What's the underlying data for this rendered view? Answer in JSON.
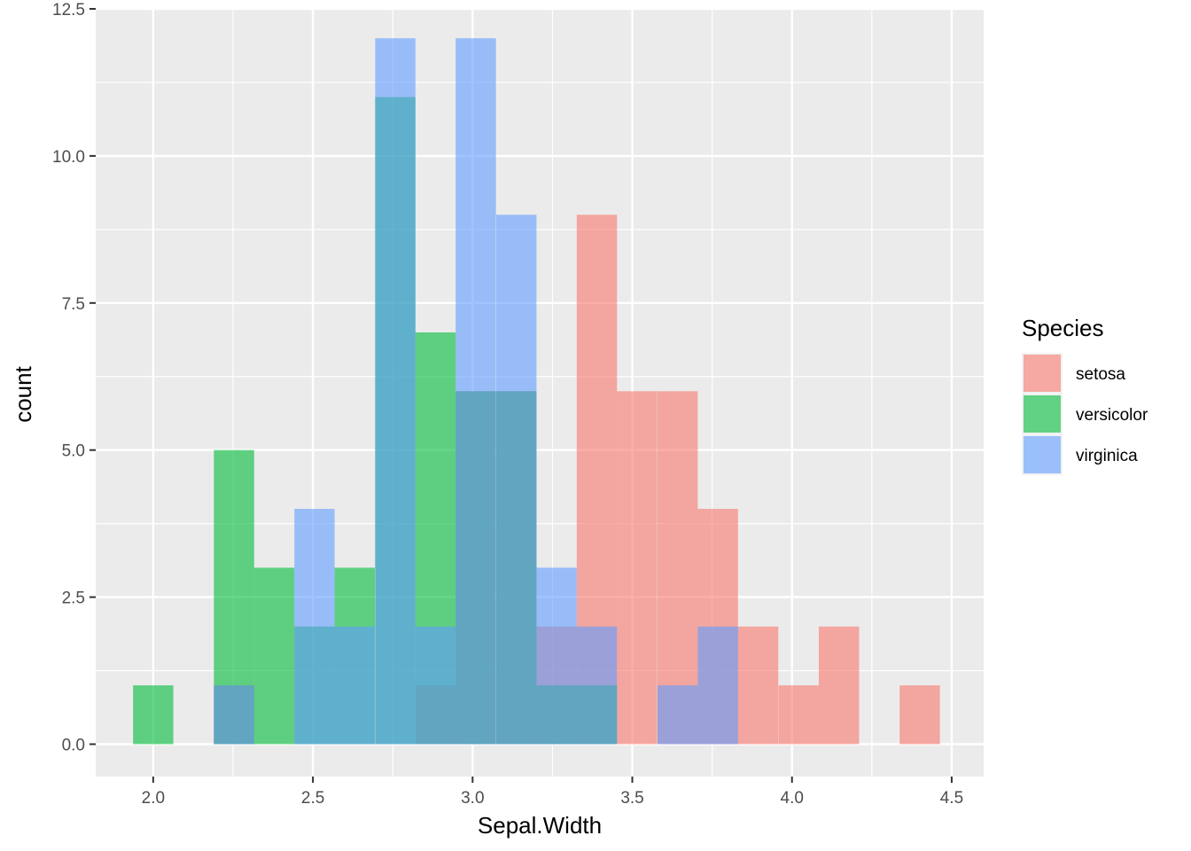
{
  "chart_data": {
    "type": "bar",
    "subtype": "overlapping histogram",
    "xlabel": "Sepal.Width",
    "ylabel": "count",
    "x_ticks": [
      2.0,
      2.5,
      3.0,
      3.5,
      4.0,
      4.5
    ],
    "x_tick_labels": [
      "2.0",
      "2.5",
      "3.0",
      "3.5",
      "4.0",
      "4.5"
    ],
    "y_ticks": [
      0,
      2.5,
      5,
      7.5,
      10,
      12.5
    ],
    "y_tick_labels": [
      "0.0",
      "2.5",
      "5.0",
      "7.5",
      "10.0",
      "12.5"
    ],
    "xlim": [
      1.82,
      4.6
    ],
    "ylim": [
      -0.55,
      12.5
    ],
    "bin_width": 0.126,
    "bin_centers": [
      2.0,
      2.126,
      2.253,
      2.379,
      2.505,
      2.631,
      2.758,
      2.884,
      3.01,
      3.137,
      3.263,
      3.389,
      3.515,
      3.642,
      3.768,
      3.894,
      4.021,
      4.147,
      4.273,
      4.4
    ],
    "grid": true,
    "legend": {
      "title": "Species",
      "position": "right"
    },
    "series": [
      {
        "name": "setosa",
        "color": "#F8766D",
        "values": [
          0,
          0,
          1,
          0,
          0,
          0,
          0,
          1,
          6,
          6,
          2,
          9,
          6,
          6,
          4,
          2,
          1,
          2,
          0,
          1
        ]
      },
      {
        "name": "versicolor",
        "color": "#00BA38",
        "values": [
          1,
          0,
          5,
          3,
          2,
          3,
          11,
          7,
          6,
          6,
          1,
          1,
          0,
          0,
          0,
          0,
          0,
          0,
          0,
          0
        ]
      },
      {
        "name": "virginica",
        "color": "#619CFF",
        "values": [
          0,
          0,
          1,
          0,
          4,
          2,
          12,
          2,
          12,
          9,
          3,
          2,
          0,
          1,
          2,
          0,
          0,
          0,
          0,
          0
        ]
      }
    ],
    "fill_opacity": 0.6,
    "panel_background": "#EBEBEB",
    "grid_color": "#FFFFFF"
  }
}
